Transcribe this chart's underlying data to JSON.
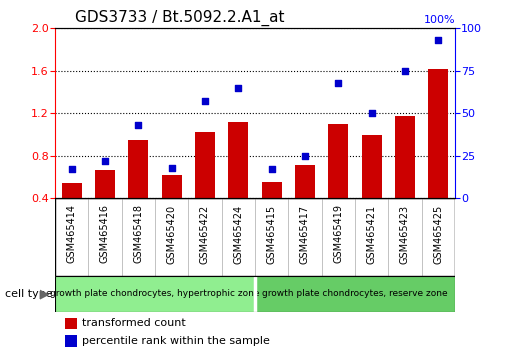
{
  "title": "GDS3733 / Bt.5092.2.A1_at",
  "categories": [
    "GSM465414",
    "GSM465416",
    "GSM465418",
    "GSM465420",
    "GSM465422",
    "GSM465424",
    "GSM465415",
    "GSM465417",
    "GSM465419",
    "GSM465421",
    "GSM465423",
    "GSM465425"
  ],
  "bar_values": [
    0.54,
    0.67,
    0.95,
    0.62,
    1.02,
    1.12,
    0.55,
    0.71,
    1.1,
    1.0,
    1.17,
    1.62
  ],
  "scatter_values": [
    17,
    22,
    43,
    18,
    57,
    65,
    17,
    25,
    68,
    50,
    75,
    93
  ],
  "bar_color": "#cc0000",
  "scatter_color": "#0000cc",
  "ylim_left": [
    0.4,
    2.0
  ],
  "ylim_right": [
    0,
    100
  ],
  "yticks_left": [
    0.4,
    0.8,
    1.2,
    1.6,
    2.0
  ],
  "yticks_right": [
    0,
    25,
    50,
    75,
    100
  ],
  "group1_label": "growth plate chondrocytes, hypertrophic zone",
  "group2_label": "growth plate chondrocytes, reserve zone",
  "group1_count": 6,
  "group2_count": 6,
  "cell_type_label": "cell type",
  "legend1": "transformed count",
  "legend2": "percentile rank within the sample",
  "grid_color": "black",
  "bar_width": 0.6,
  "group_bg1": "#90ee90",
  "group_bg2": "#66cc66",
  "tick_bg": "#d3d3d3",
  "tick_label_fontsize": 7,
  "title_fontsize": 11,
  "right_label": "100%"
}
